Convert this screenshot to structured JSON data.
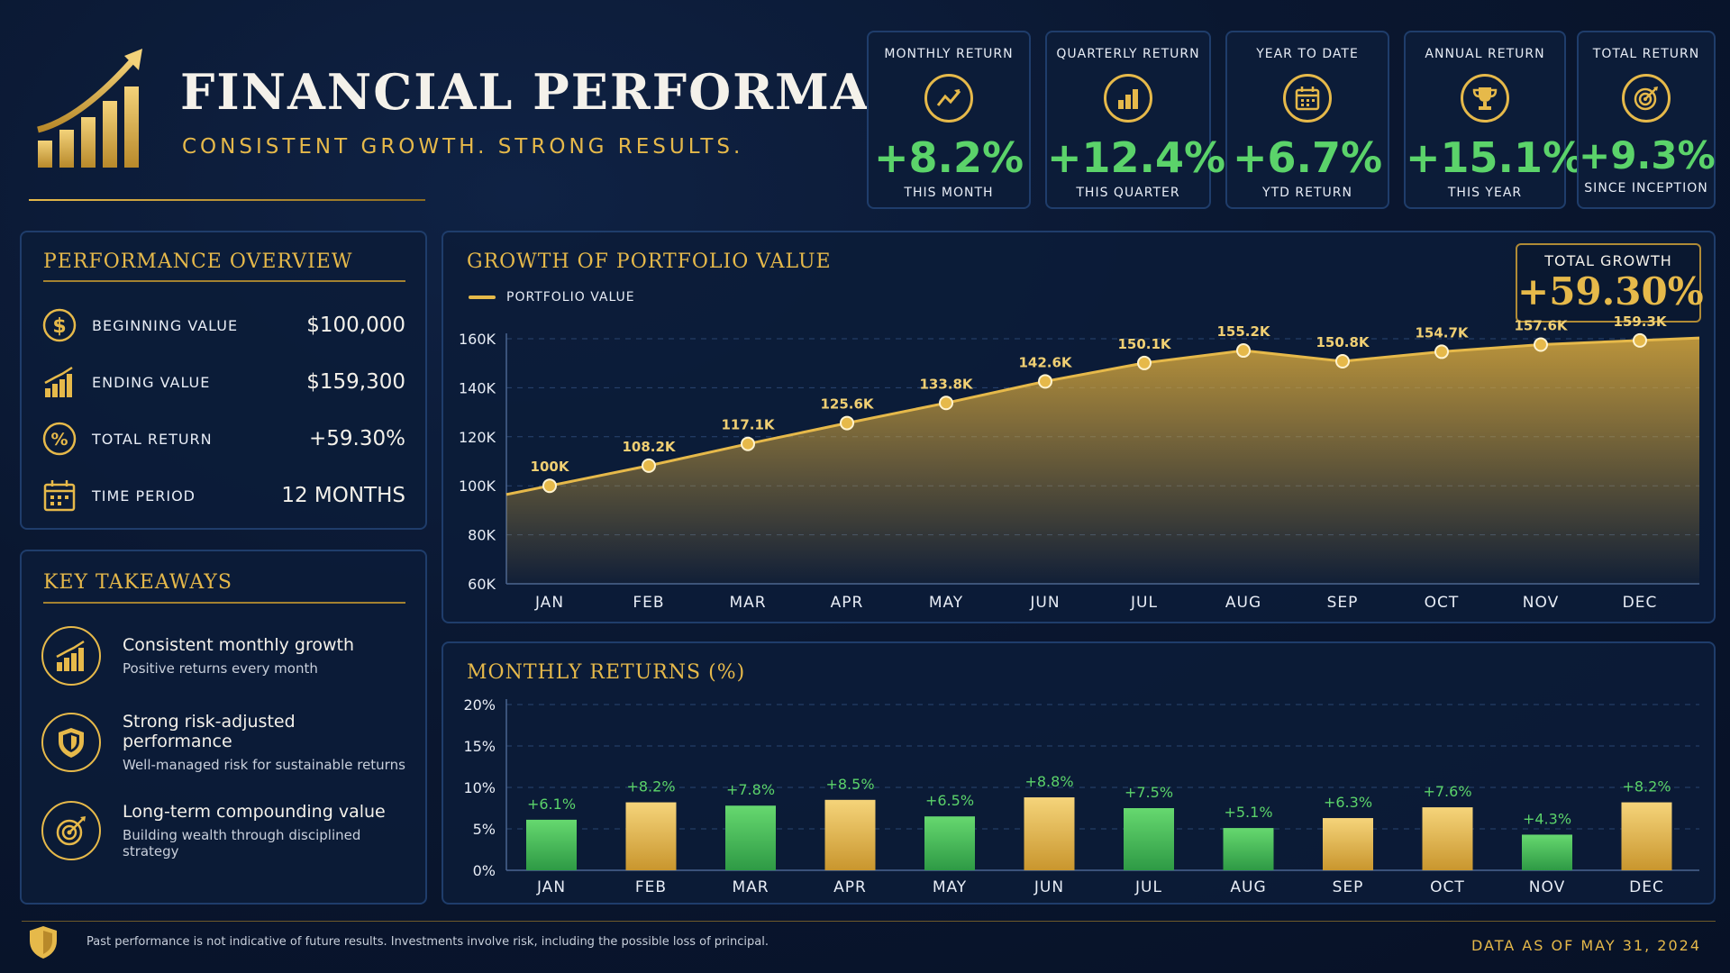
{
  "header": {
    "title": "FINANCIAL PERFORMANCE",
    "subtitle": "CONSISTENT GROWTH. STRONG RESULTS."
  },
  "kpis": [
    {
      "label": "MONTHLY RETURN",
      "value": "+8.2%",
      "sub": "THIS MONTH",
      "icon": "trend-up-icon"
    },
    {
      "label": "QUARTERLY RETURN",
      "value": "+12.4%",
      "sub": "THIS QUARTER",
      "icon": "bar-chart-icon"
    },
    {
      "label": "YEAR TO DATE",
      "value": "+6.7%",
      "sub": "YTD RETURN",
      "icon": "calendar-icon"
    },
    {
      "label": "ANNUAL RETURN",
      "value": "+15.1%",
      "sub": "THIS YEAR",
      "icon": "trophy-icon"
    },
    {
      "label": "TOTAL RETURN",
      "value": "+9.3%",
      "sub": "SINCE INCEPTION",
      "icon": "target-icon"
    }
  ],
  "overview": {
    "title": "PERFORMANCE OVERVIEW",
    "rows": [
      {
        "label": "BEGINNING VALUE",
        "value": "$100,000",
        "icon": "dollar-icon"
      },
      {
        "label": "ENDING VALUE",
        "value": "$159,300",
        "icon": "growth-chart-icon"
      },
      {
        "label": "TOTAL RETURN",
        "value": "+59.30%",
        "icon": "percent-icon"
      },
      {
        "label": "TIME PERIOD",
        "value": "12 MONTHS",
        "icon": "calendar-icon"
      }
    ]
  },
  "takeaways": {
    "title": "KEY TAKEAWAYS",
    "items": [
      {
        "heading": "Consistent monthly growth",
        "sub": "Positive returns every month",
        "icon": "growth-chart-icon"
      },
      {
        "heading": "Strong risk-adjusted performance",
        "sub": "Well-managed risk for sustainable returns",
        "icon": "shield-icon"
      },
      {
        "heading": "Long-term compounding value",
        "sub": "Building wealth through disciplined strategy",
        "icon": "target-icon"
      }
    ]
  },
  "growth_panel": {
    "title": "GROWTH OF PORTFOLIO VALUE",
    "legend": "PORTFOLIO VALUE",
    "total_growth_label": "TOTAL GROWTH",
    "total_growth_value": "+59.30%"
  },
  "returns_panel": {
    "title": "MONTHLY RETURNS (%)"
  },
  "footer": {
    "disclaimer": "Past performance is not indicative of future results. Investments involve risk, including the possible loss of principal.",
    "data_as_of": "DATA AS OF MAY 31, 2024"
  },
  "colors": {
    "gold": "#e6b94a",
    "green": "#5bd36a",
    "background": "#0a1730",
    "panel_border": "#1f3d6b"
  },
  "chart_data": [
    {
      "type": "area",
      "title": "GROWTH OF PORTFOLIO VALUE",
      "categories": [
        "JAN",
        "FEB",
        "MAR",
        "APR",
        "MAY",
        "JUN",
        "JUL",
        "AUG",
        "SEP",
        "OCT",
        "NOV",
        "DEC"
      ],
      "series": [
        {
          "name": "PORTFOLIO VALUE",
          "values": [
            100,
            108.2,
            117.1,
            125.6,
            133.8,
            142.6,
            150.1,
            155.2,
            150.8,
            154.7,
            157.6,
            159.3
          ]
        }
      ],
      "data_labels": [
        "100K",
        "108.2K",
        "117.1K",
        "125.6K",
        "133.8K",
        "142.6K",
        "150.1K",
        "155.2K",
        "150.8K",
        "154.7K",
        "157.6K",
        "159.3K"
      ],
      "y_ticks": [
        "60K",
        "80K",
        "100K",
        "120K",
        "140K",
        "160K"
      ],
      "ylim": [
        60,
        160
      ],
      "y_unit": "K",
      "grid": true
    },
    {
      "type": "bar",
      "title": "MONTHLY RETURNS (%)",
      "categories": [
        "JAN",
        "FEB",
        "MAR",
        "APR",
        "MAY",
        "JUN",
        "JUL",
        "AUG",
        "SEP",
        "OCT",
        "NOV",
        "DEC"
      ],
      "values": [
        6.1,
        8.2,
        7.8,
        8.5,
        6.5,
        8.8,
        7.5,
        5.1,
        6.3,
        7.6,
        4.3,
        8.2
      ],
      "data_labels": [
        "+6.1%",
        "+8.2%",
        "+7.8%",
        "+8.5%",
        "+6.5%",
        "+8.8%",
        "+7.5%",
        "+5.1%",
        "+6.3%",
        "+7.6%",
        "+4.3%",
        "+8.2%"
      ],
      "bar_colors": [
        "green",
        "gold",
        "green",
        "gold",
        "green",
        "gold",
        "green",
        "green",
        "gold",
        "gold",
        "green",
        "gold"
      ],
      "y_ticks": [
        "0%",
        "5%",
        "10%",
        "15%",
        "20%"
      ],
      "ylim": [
        0,
        20
      ],
      "grid": true
    }
  ]
}
